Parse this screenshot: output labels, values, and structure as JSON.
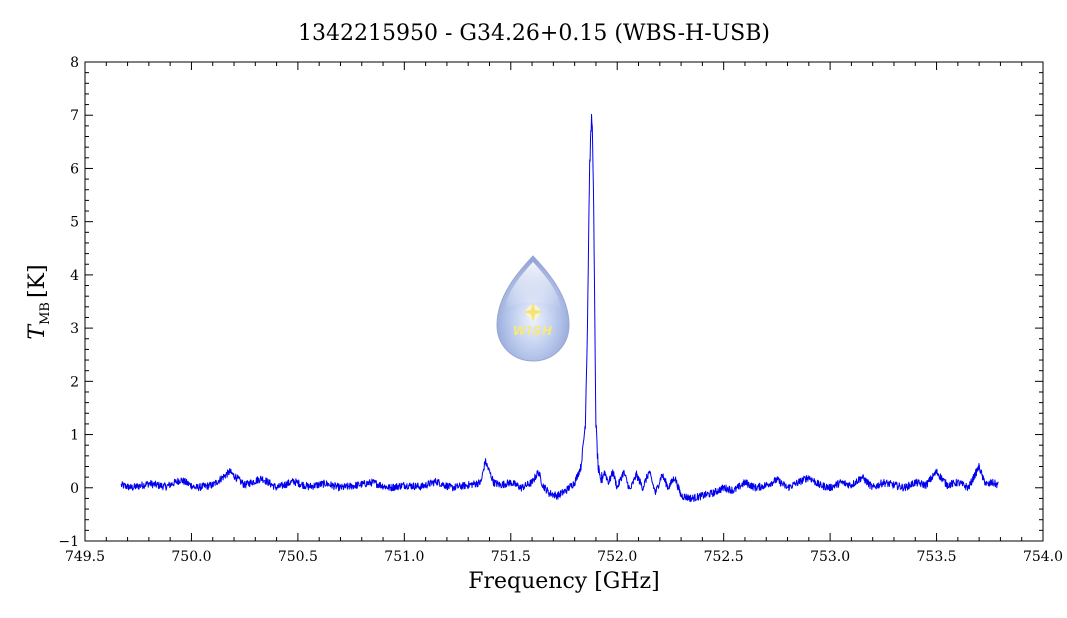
{
  "chart_data": {
    "type": "line",
    "title": "1342215950 - G34.26+0.15 (WBS-H-USB)",
    "xlabel": "Frequency [GHz]",
    "ylabel_main": "T",
    "ylabel_sub": "MB",
    "ylabel_unit": "[K]",
    "xlim": [
      749.5,
      754.0
    ],
    "ylim": [
      -1,
      8
    ],
    "xticks": [
      749.5,
      750.0,
      750.5,
      751.0,
      751.5,
      752.0,
      752.5,
      753.0,
      753.5,
      754.0
    ],
    "xtick_labels": [
      "749.5",
      "750.0",
      "750.5",
      "751.0",
      "751.5",
      "752.0",
      "752.5",
      "753.0",
      "753.5",
      "754.0"
    ],
    "yticks": [
      -1,
      0,
      1,
      2,
      3,
      4,
      5,
      6,
      7,
      8
    ],
    "ytick_labels": [
      "−1",
      "0",
      "1",
      "2",
      "3",
      "4",
      "5",
      "6",
      "7",
      "8"
    ],
    "grid": false,
    "series": [
      {
        "color": "#0000ee",
        "x": [
          749.67,
          749.72,
          749.8,
          749.88,
          749.95,
          750.02,
          750.1,
          750.18,
          750.25,
          750.33,
          750.4,
          750.48,
          750.55,
          750.63,
          750.7,
          750.78,
          750.85,
          750.93,
          751.0,
          751.08,
          751.15,
          751.22,
          751.3,
          751.36,
          751.38,
          751.4,
          751.42,
          751.45,
          751.5,
          751.55,
          751.6,
          751.63,
          751.65,
          751.68,
          751.72,
          751.76,
          751.8,
          751.83,
          751.85,
          751.86,
          751.87,
          751.88,
          751.885,
          751.89,
          751.895,
          751.9,
          751.91,
          751.92,
          751.94,
          751.96,
          751.98,
          752.0,
          752.03,
          752.06,
          752.09,
          752.12,
          752.15,
          752.18,
          752.21,
          752.24,
          752.27,
          752.3,
          752.35,
          752.4,
          752.45,
          752.5,
          752.55,
          752.6,
          752.65,
          752.7,
          752.75,
          752.8,
          752.85,
          752.9,
          752.95,
          753.0,
          753.05,
          753.1,
          753.15,
          753.2,
          753.25,
          753.3,
          753.35,
          753.4,
          753.45,
          753.5,
          753.55,
          753.6,
          753.65,
          753.7,
          753.72,
          753.74,
          753.76,
          753.79
        ],
        "y": [
          0.05,
          0.0,
          0.08,
          0.02,
          0.15,
          0.0,
          0.05,
          0.3,
          0.05,
          0.18,
          0.0,
          0.12,
          0.02,
          0.08,
          0.0,
          0.05,
          0.1,
          0.0,
          0.05,
          0.02,
          0.12,
          0.0,
          0.05,
          0.1,
          0.5,
          0.3,
          0.1,
          0.05,
          0.1,
          0.0,
          0.1,
          0.3,
          0.05,
          -0.1,
          -0.15,
          -0.05,
          0.1,
          0.4,
          1.2,
          3.0,
          6.0,
          7.0,
          6.5,
          5.0,
          3.0,
          1.2,
          0.4,
          0.1,
          0.3,
          0.1,
          0.3,
          0.0,
          0.3,
          -0.05,
          0.25,
          0.0,
          0.3,
          -0.1,
          0.25,
          0.0,
          0.2,
          -0.15,
          -0.2,
          -0.15,
          -0.1,
          0.0,
          -0.05,
          0.1,
          0.0,
          0.05,
          0.15,
          0.0,
          0.1,
          0.2,
          0.05,
          0.0,
          0.1,
          0.05,
          0.2,
          0.0,
          0.1,
          0.05,
          0.0,
          0.1,
          0.05,
          0.3,
          0.05,
          0.1,
          0.0,
          0.4,
          0.15,
          0.05,
          0.1,
          0.05
        ]
      }
    ],
    "logo_text": "WISH"
  }
}
